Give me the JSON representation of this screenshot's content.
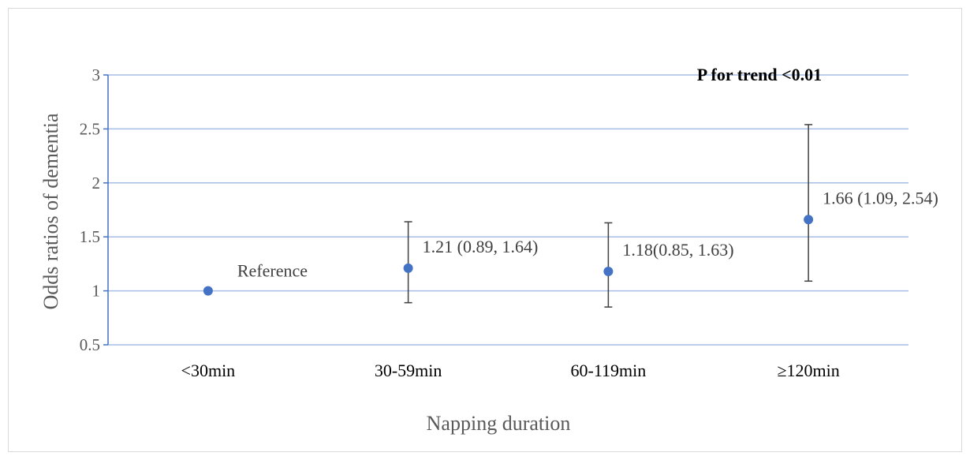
{
  "chart_data": {
    "type": "scatter",
    "annotation": "P for trend <0.01",
    "xlabel": "Napping duration",
    "ylabel": "Odds  ratios of dementia",
    "categories": [
      "<30min",
      "30-59min",
      "60-119min",
      "≥120min"
    ],
    "ylim": [
      0.5,
      3
    ],
    "yticks": [
      "0.5",
      "1",
      "1.5",
      "2",
      "2.5",
      "3"
    ],
    "grid": true,
    "points": [
      {
        "category": "<30min",
        "or": 1.0,
        "ci": null,
        "label": "Reference"
      },
      {
        "category": "30-59min",
        "or": 1.21,
        "ci": [
          0.89,
          1.64
        ],
        "label": "1.21 (0.89,  1.64)"
      },
      {
        "category": "60-119min",
        "or": 1.18,
        "ci": [
          0.85,
          1.63
        ],
        "label": "1.18(0.85,  1.63)"
      },
      {
        "category": "≥120min",
        "or": 1.66,
        "ci": [
          1.09,
          2.54
        ],
        "label": "1.66 (1.09,  2.54)"
      }
    ],
    "colors": {
      "marker": "#4472c4",
      "grid": "#a6bee6",
      "axis": "#4472c4",
      "errorbar": "#404040",
      "text": "#595959"
    }
  }
}
